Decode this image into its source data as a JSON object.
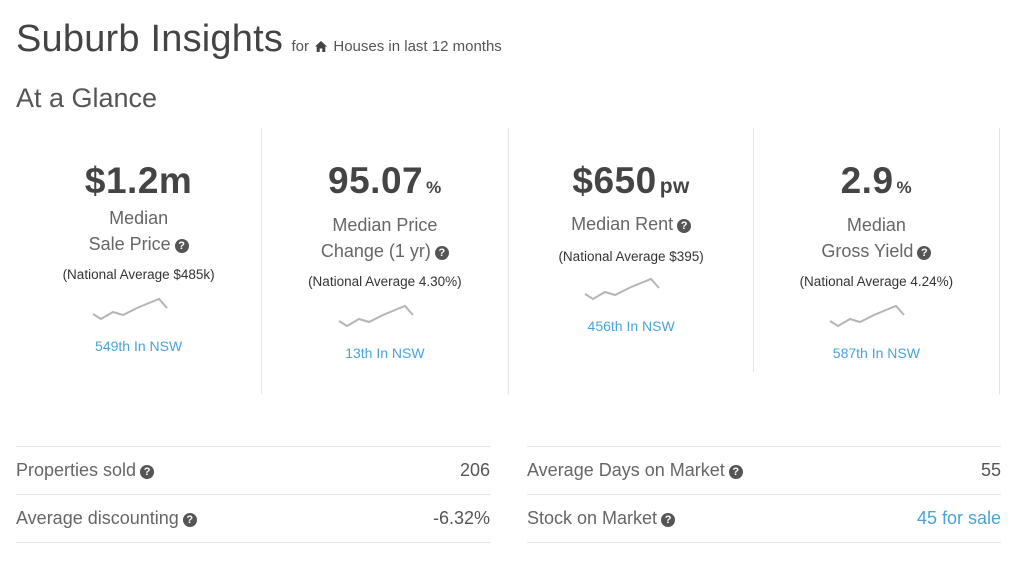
{
  "header": {
    "title": "Suburb Insights",
    "subtitle_prefix": "for",
    "subtitle_suffix": "Houses in last 12 months"
  },
  "section_title": "At a Glance",
  "cards": [
    {
      "value": "$1.2m",
      "unit": "",
      "label_line1": "Median",
      "label_line2": "Sale Price",
      "national_average": "(National Average $485k)",
      "rank": "549th In NSW"
    },
    {
      "value": "95.07",
      "unit": "%",
      "label_line1": "Median Price",
      "label_line2": "Change (1 yr)",
      "national_average": "(National Average 4.30%)",
      "rank": "13th In NSW"
    },
    {
      "value": "$650",
      "unit": "pw",
      "label_line1": "Median Rent",
      "national_average": "(National Average $395)",
      "rank": "456th In NSW"
    },
    {
      "value": "2.9",
      "unit": "%",
      "label_line1": "Median",
      "label_line2": "Gross Yield",
      "national_average": "(National Average 4.24%)",
      "rank": "587th In NSW"
    }
  ],
  "stats_left": [
    {
      "label": "Properties sold",
      "value": "206"
    },
    {
      "label": "Average discounting",
      "value": "-6.32%"
    }
  ],
  "stats_right": [
    {
      "label": "Average Days on Market",
      "value": "55"
    },
    {
      "label": "Stock on Market",
      "value": "45 for sale"
    }
  ],
  "icons": {
    "home": "home-icon",
    "help": "question-circle-icon",
    "sparkline": "sparkline-trend-icon"
  },
  "colors": {
    "link": "#4aa3d8",
    "text": "#444444",
    "sparkline": "#b5b5b5"
  }
}
